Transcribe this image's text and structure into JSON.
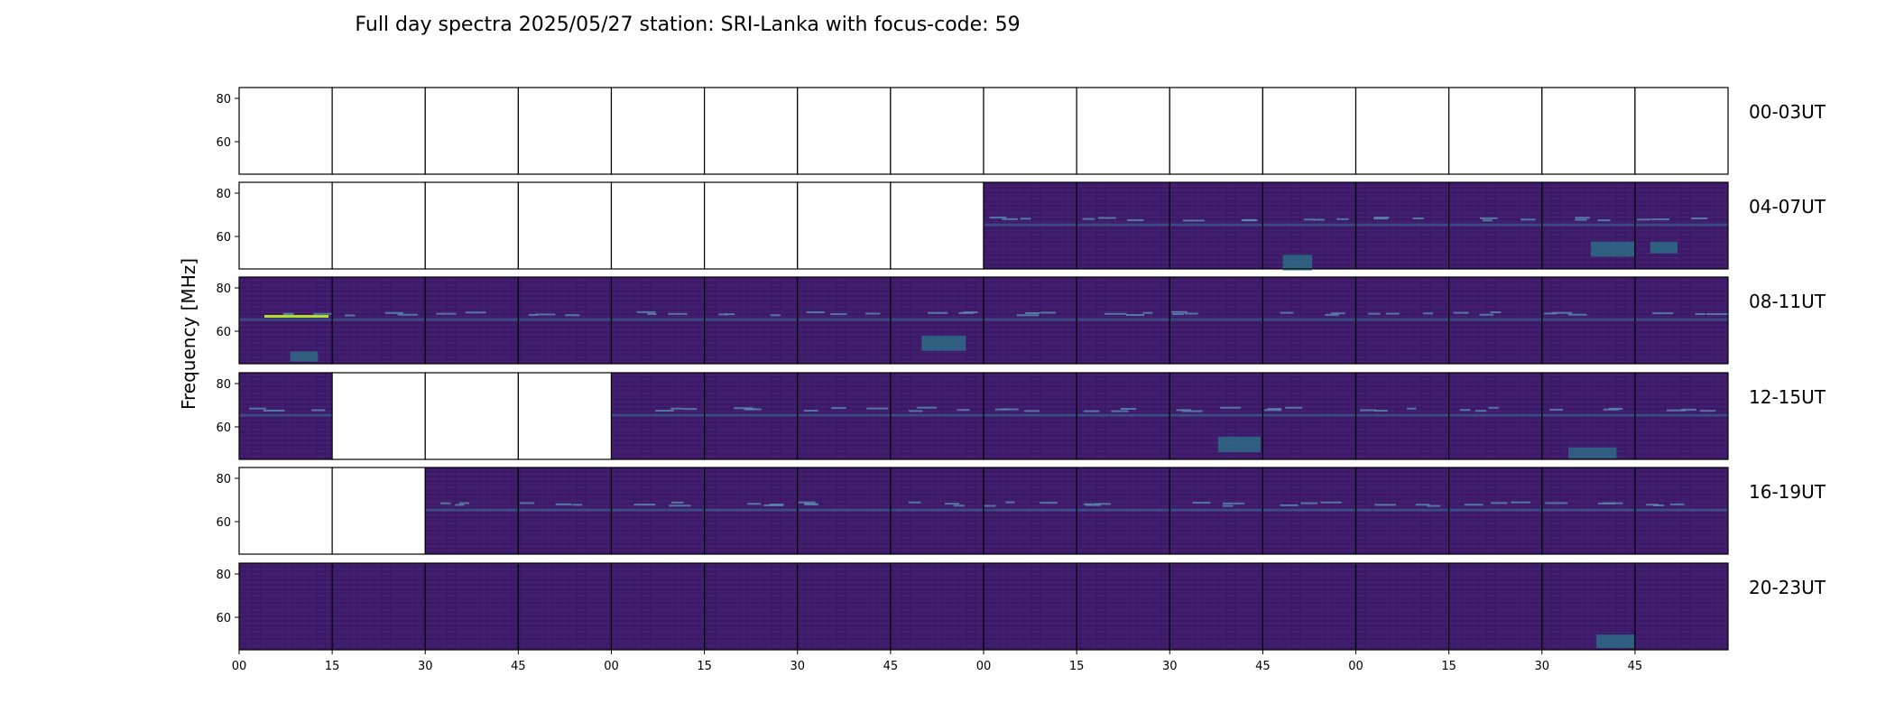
{
  "chart_data": {
    "type": "heatmap",
    "title": "Full day spectra 2025/05/27 station: SRI-Lanka with focus-code: 59",
    "ylabel": "Frequency [MHz]",
    "y_ticks": [
      60,
      80
    ],
    "ylim": [
      45,
      85
    ],
    "x_ticks": [
      "00",
      "15",
      "30",
      "45",
      "00",
      "15",
      "30",
      "45",
      "00",
      "15",
      "30",
      "45",
      "00",
      "15",
      "30",
      "45"
    ],
    "minutes_per_panel": 15,
    "colormap": "viridis",
    "colors": {
      "empty": "#ffffff",
      "background": "#3f1a6b",
      "band": "#26828e",
      "bright": "#b5de2b"
    },
    "rows": [
      {
        "label": "00-03UT",
        "has_data": [
          false,
          false,
          false,
          false,
          false,
          false,
          false,
          false,
          false,
          false,
          false,
          false,
          false,
          false,
          false,
          false
        ]
      },
      {
        "label": "04-07UT",
        "has_data": [
          false,
          false,
          false,
          false,
          false,
          false,
          false,
          false,
          true,
          true,
          true,
          true,
          true,
          true,
          true,
          true
        ]
      },
      {
        "label": "08-11UT",
        "has_data": [
          true,
          true,
          true,
          true,
          true,
          true,
          true,
          true,
          true,
          true,
          true,
          true,
          true,
          true,
          true,
          true
        ]
      },
      {
        "label": "12-15UT",
        "has_data": [
          true,
          false,
          false,
          false,
          true,
          true,
          true,
          true,
          true,
          true,
          true,
          true,
          true,
          true,
          true,
          true
        ]
      },
      {
        "label": "16-19UT",
        "has_data": [
          false,
          false,
          true,
          true,
          true,
          true,
          true,
          true,
          true,
          true,
          true,
          true,
          true,
          true,
          true,
          true
        ]
      },
      {
        "label": "20-23UT",
        "has_data": [
          true,
          true,
          true,
          true,
          true,
          true,
          true,
          true,
          true,
          true,
          true,
          true,
          true,
          true,
          true,
          true
        ]
      }
    ]
  }
}
